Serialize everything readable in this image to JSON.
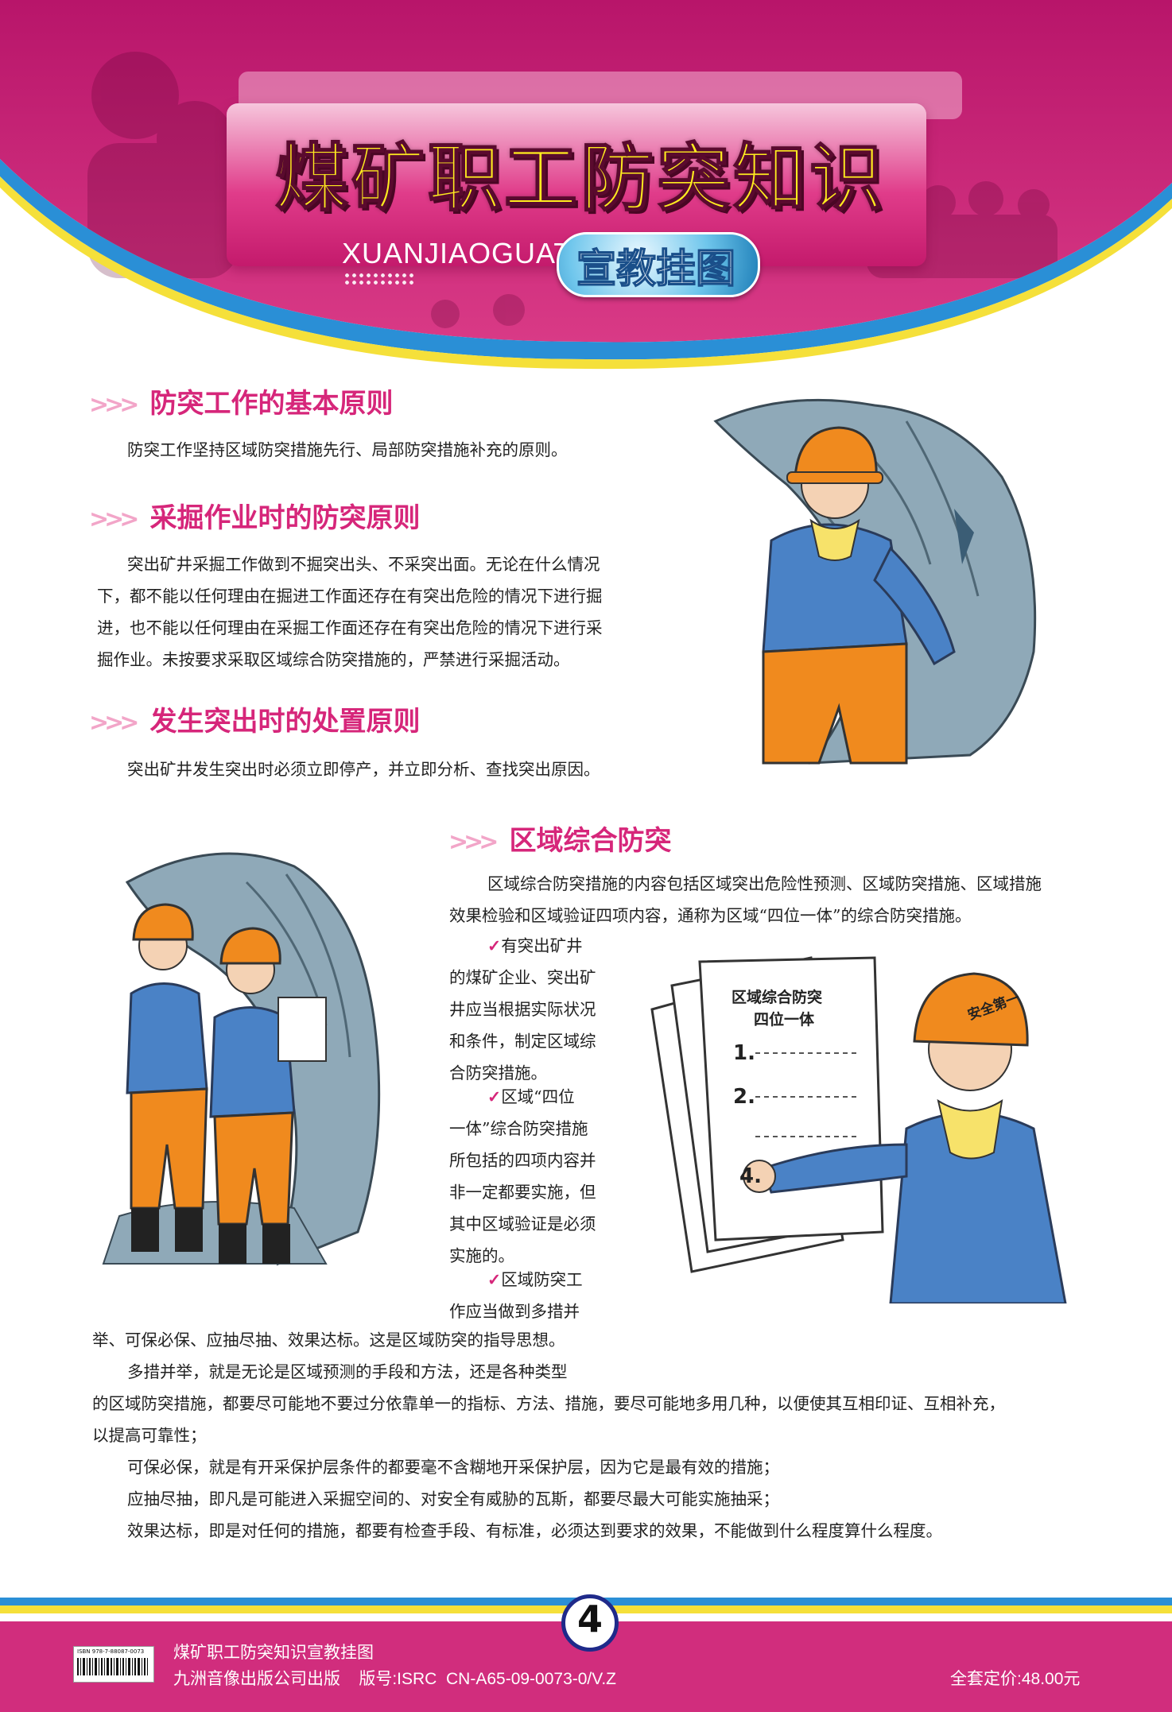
{
  "header": {
    "title": "煤矿职工防突知识",
    "pinyin": "XUANJIAOGUATU",
    "subtitle": "宣教挂图"
  },
  "sections": [
    {
      "chevrons": ">>>",
      "heading": "防突工作的基本原则",
      "lines": [
        "防突工作坚持区域防突措施先行、局部防突措施补充的原则。"
      ]
    },
    {
      "chevrons": ">>>",
      "heading": "采掘作业时的防突原则",
      "lines": [
        "突出矿井采掘工作做到不掘突出头、不采突出面。无论在什么情况",
        "下，都不能以任何理由在掘进工作面还存在有突出危险的情况下进行掘",
        "进，也不能以任何理由在采掘工作面还存在有突出危险的情况下进行采",
        "掘作业。未按要求采取区域综合防突措施的，严禁进行采掘活动。"
      ]
    },
    {
      "chevrons": ">>>",
      "heading": "发生突出时的处置原则",
      "lines": [
        "突出矿井发生突出时必须立即停产，并立即分析、查找突出原因。"
      ]
    }
  ],
  "regional": {
    "chevrons": ">>>",
    "heading": "区域综合防突",
    "intro": [
      "区域综合防突措施的内容包括区域突出危险性预测、区域防突措施、区域措施",
      "效果检验和区域验证四项内容，通称为区域“四位一体”的综合防突措施。"
    ],
    "check_mark": "✓",
    "item1": [
      "有突出矿井",
      "的煤矿企业、突出矿",
      "井应当根据实际状况",
      "和条件，制定区域综",
      "合防突措施。"
    ],
    "item2": [
      "区域“四位",
      "一体”综合防突措施",
      "所包括的四项内容并",
      "非一定都要实施，但",
      "其中区域验证是必须",
      "实施的。"
    ],
    "item3": [
      "区域防突工",
      "作应当做到多措并"
    ],
    "tail": [
      "举、可保必保、应抽尽抽、效果达标。这是区域防突的指导思想。",
      "多措并举，就是无论是区域预测的手段和方法，还是各种类型",
      "的区域防突措施，都要尽可能地不要过分依靠单一的指标、方法、措施，要尽可能地多用几种，以便使其互相印证、互相补充，",
      "以提高可靠性；",
      "可保必保，就是有开采保护层条件的都要毫不含糊地开采保护层，因为它是最有效的措施；",
      "应抽尽抽，即凡是可能进入采掘空间的、对安全有威胁的瓦斯，都要尽最大可能实施抽采；",
      "效果达标，即是对任何的措施，都要有检查手段、有标准，必须达到要求的效果，不能做到什么程度算什么程度。"
    ]
  },
  "illustrations": {
    "doc_title_1": "区域综合防突",
    "doc_title_2": "四位一体",
    "doc_item_1": "1.",
    "doc_item_2": "2.",
    "doc_item_4": "4.",
    "helmet_text": "安全第一"
  },
  "footer": {
    "page_number": "4",
    "line1": "煤矿职工防突知识宣教挂图",
    "line2": "九洲音像出版公司出版    版号:ISRC  CN-A65-09-0073-0/V.Z",
    "price": "全套定价:48.00元",
    "isbn": "ISBN 978-7-88087-0073"
  },
  "colors": {
    "brand_magenta": "#d12d7d",
    "heading_pink": "#d6267a",
    "title_yellow": "#ffec1f",
    "stripe_blue": "#2a8fd6",
    "stripe_yellow": "#f5e03a"
  }
}
